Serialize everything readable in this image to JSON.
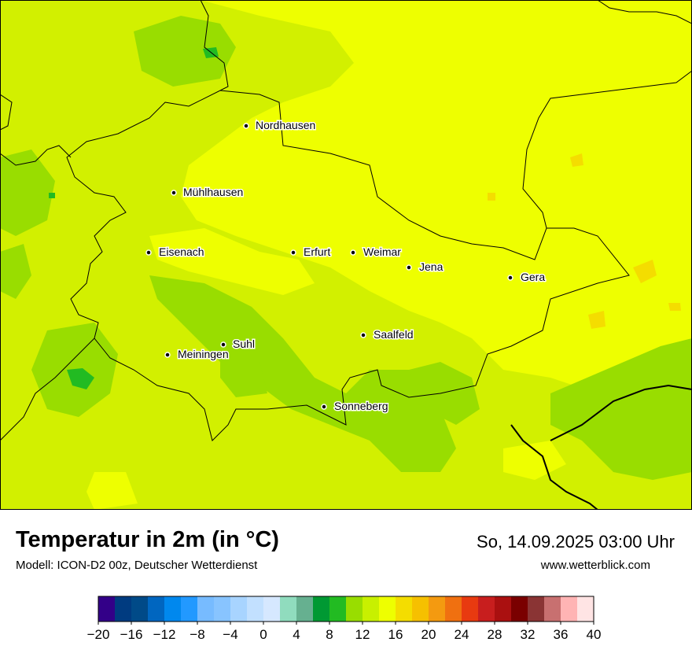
{
  "header": {
    "title": "Temperatur in 2m (in °C)",
    "subtitle": "Modell: ICON-D2 00z, Deutscher Wetterdienst",
    "datetime": "So, 14.09.2025 03:00 Uhr",
    "website": "www.wetterblick.com"
  },
  "cities": [
    {
      "name": "Nordhausen"
    },
    {
      "name": "Mühlhausen"
    },
    {
      "name": "Eisenach"
    },
    {
      "name": "Erfurt"
    },
    {
      "name": "Weimar"
    },
    {
      "name": "Jena"
    },
    {
      "name": "Gera"
    },
    {
      "name": "Suhl"
    },
    {
      "name": "Meiningen"
    },
    {
      "name": "Saalfeld"
    },
    {
      "name": "Sonneberg"
    }
  ],
  "legend": {
    "tick_labels": [
      "−20",
      "−16",
      "−12",
      "−8",
      "−4",
      "0",
      "4",
      "8",
      "12",
      "16",
      "20",
      "24",
      "28",
      "32",
      "36",
      "40"
    ],
    "colors": [
      "#330088",
      "#003b80",
      "#004a88",
      "#0066c0",
      "#0088ee",
      "#2299ff",
      "#77bbff",
      "#88c4ff",
      "#a8d4ff",
      "#c2e0ff",
      "#d6e8ff",
      "#90dcbe",
      "#66b090",
      "#009933",
      "#22bb22",
      "#99dd00",
      "#c8f000",
      "#eeff00",
      "#f4dd00",
      "#f6c000",
      "#f49a10",
      "#f07010",
      "#e83a10",
      "#c81e1e",
      "#aa1010",
      "#7a0000",
      "#8a3434",
      "#c87070",
      "#ffb4b4",
      "#ffe4e4"
    ]
  },
  "map_colors": {
    "background": "#d2f000",
    "warm_yellow": "#eeff00",
    "mid_green": "#99dd00",
    "dark_green": "#22bb22",
    "orange": "#f4dd00"
  }
}
